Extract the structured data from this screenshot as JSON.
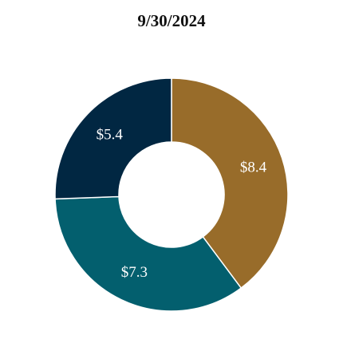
{
  "chart_data": {
    "type": "pie",
    "variant": "donut",
    "title": "9/30/2024",
    "slices": [
      {
        "label": "$8.4",
        "value": 8.4,
        "color": "#986c2a"
      },
      {
        "label": "$7.3",
        "value": 7.3,
        "color": "#035f6e"
      },
      {
        "label": "$5.4",
        "value": 5.4,
        "color": "#012742"
      }
    ],
    "start": "12 o'clock",
    "direction": "clockwise",
    "legend": "none"
  }
}
